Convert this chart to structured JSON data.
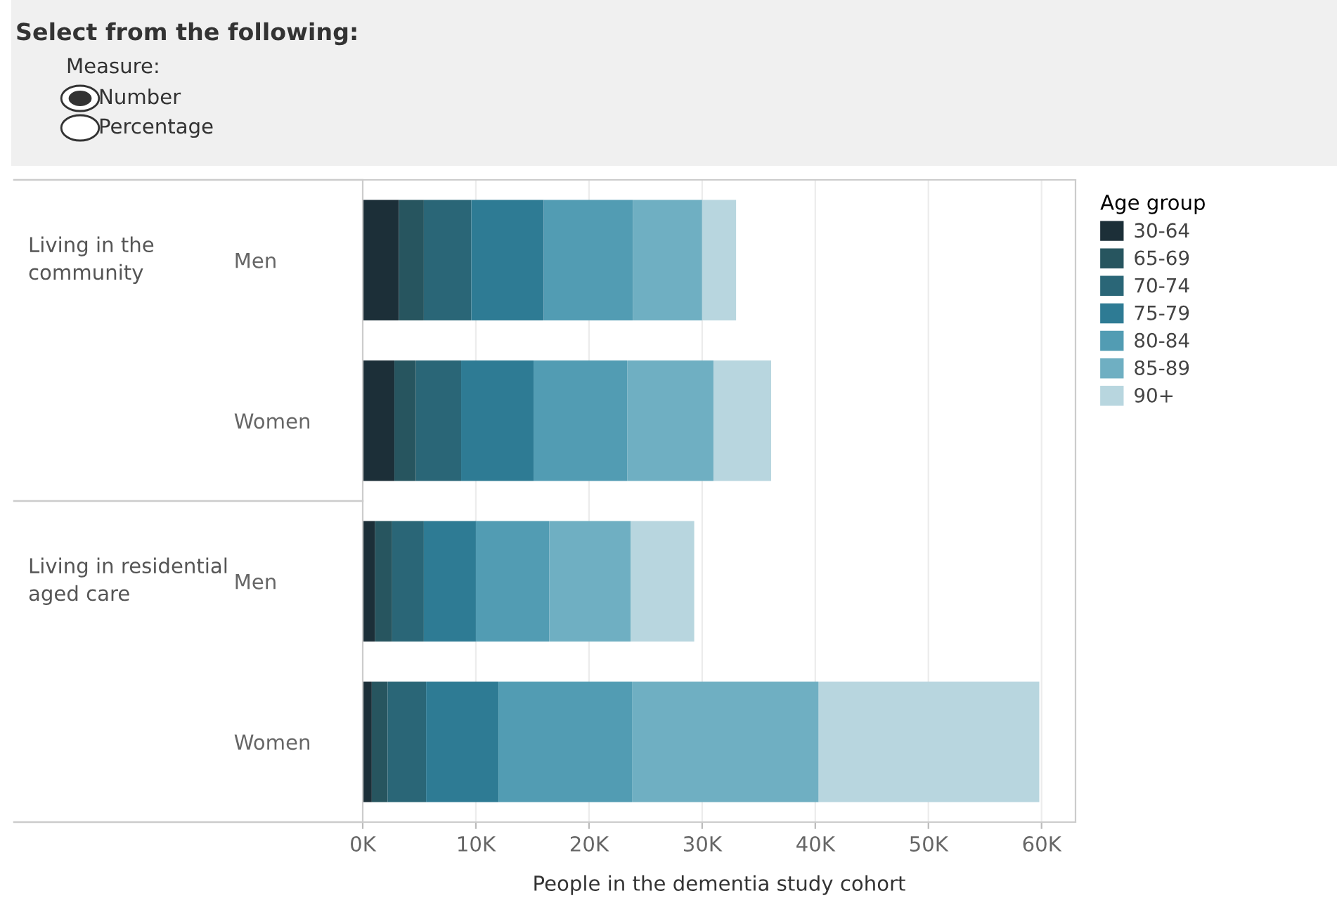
{
  "chart_data": {
    "type": "bar",
    "orientation": "horizontal",
    "stacked": true,
    "xlabel": "People in the dementia study cohort",
    "legend_title": "Age group",
    "legend": "right",
    "grid": "x",
    "categories": [
      "Men",
      "Women",
      "Men",
      "Women"
    ],
    "series": [
      {
        "name": "30-64",
        "color": "#1c2f38",
        "values": [
          3200,
          2800,
          1100,
          800
        ]
      },
      {
        "name": "65-69",
        "color": "#27555f",
        "values": [
          2200,
          1900,
          1500,
          1400
        ]
      },
      {
        "name": "70-74",
        "color": "#2a6677",
        "values": [
          4200,
          4000,
          2800,
          3400
        ]
      },
      {
        "name": "75-79",
        "color": "#2e7b94",
        "values": [
          6400,
          6400,
          4600,
          6400
        ]
      },
      {
        "name": "80-84",
        "color": "#529cb3",
        "values": [
          7900,
          8300,
          6500,
          11800
        ]
      },
      {
        "name": "85-89",
        "color": "#6fafc2",
        "values": [
          6100,
          7600,
          7200,
          16500
        ]
      },
      {
        "name": "90+",
        "color": "#b8d6df",
        "values": [
          3000,
          5100,
          5600,
          19500
        ]
      }
    ],
    "xlim": [
      0,
      63000
    ],
    "xticks": [
      {
        "value": 0,
        "label": "0K"
      },
      {
        "value": 10000,
        "label": "10K"
      },
      {
        "value": 20000,
        "label": "20K"
      },
      {
        "value": 30000,
        "label": "30K"
      },
      {
        "value": 40000,
        "label": "40K"
      },
      {
        "value": 50000,
        "label": "50K"
      },
      {
        "value": 60000,
        "label": "60K"
      }
    ],
    "annotations": [
      "Select from the following:",
      "Measure:",
      "Number",
      "Percentage",
      "Living in the\ncommunity",
      "Living in residential\naged care"
    ]
  }
}
